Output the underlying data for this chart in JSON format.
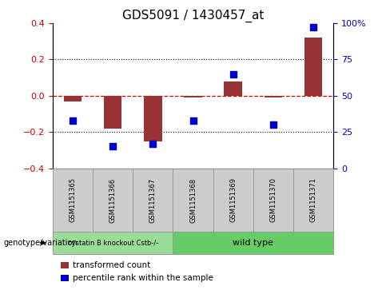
{
  "title": "GDS5091 / 1430457_at",
  "samples": [
    "GSM1151365",
    "GSM1151366",
    "GSM1151367",
    "GSM1151368",
    "GSM1151369",
    "GSM1151370",
    "GSM1151371"
  ],
  "transformed_count": [
    -0.03,
    -0.18,
    -0.25,
    -0.01,
    0.08,
    -0.01,
    0.32
  ],
  "percentile_rank": [
    33,
    15,
    17,
    33,
    65,
    30,
    97
  ],
  "ylim_left": [
    -0.4,
    0.4
  ],
  "ylim_right": [
    0,
    100
  ],
  "bar_color": "#993333",
  "dot_color": "#0000cc",
  "zero_line_color": "#cc0000",
  "grid_color": "#000000",
  "bg_color": "#ffffff",
  "group1_label": "cystatin B knockout Cstb-/-",
  "group2_label": "wild type",
  "group1_color": "#99dd99",
  "group2_color": "#66cc66",
  "group1_count": 3,
  "group2_count": 4,
  "legend_bar_label": "transformed count",
  "legend_dot_label": "percentile rank within the sample",
  "right_ticks": [
    0,
    25,
    50,
    75,
    100
  ],
  "right_tick_labels": [
    "0",
    "25",
    "50",
    "75",
    "100%"
  ],
  "left_ticks": [
    -0.4,
    -0.2,
    0.0,
    0.2,
    0.4
  ],
  "bar_width": 0.45,
  "dot_size": 35,
  "tick_label_color_left": "#cc0000",
  "tick_label_color_right": "#0000cc",
  "genotype_label": "genotype/variation",
  "box_color": "#cccccc",
  "box_edge_color": "#999999",
  "title_fontsize": 11,
  "label_fontsize": 6,
  "group_fontsize": 7,
  "legend_fontsize": 7.5
}
